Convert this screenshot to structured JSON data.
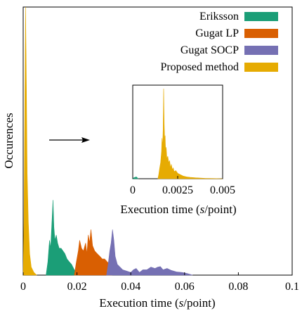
{
  "chart_data": [
    {
      "type": "area",
      "role": "main",
      "xlabel": "Execution time (s/point)",
      "ylabel": "Occurences",
      "xlim": [
        0,
        0.1
      ],
      "xticks": [
        "0",
        "0.02",
        "0.04",
        "0.06",
        "0.08",
        "0.1"
      ],
      "tick_values": [
        0,
        0.02,
        0.04,
        0.06,
        0.08,
        0.1
      ],
      "y_scale": "relative frequency (no ticks shown)",
      "ylim": [
        0,
        1
      ],
      "legend_placement": "top-right",
      "grid": false,
      "series": [
        {
          "name": "Eriksson",
          "color": "#1b9e77",
          "points": [
            [
              0.0085,
              0
            ],
            [
              0.0092,
              0.05
            ],
            [
              0.0098,
              0.13
            ],
            [
              0.0102,
              0.1
            ],
            [
              0.0107,
              0.2
            ],
            [
              0.0111,
              0.28
            ],
            [
              0.0114,
              0.18
            ],
            [
              0.0118,
              0.13
            ],
            [
              0.0123,
              0.15
            ],
            [
              0.0128,
              0.12
            ],
            [
              0.0134,
              0.1
            ],
            [
              0.0141,
              0.1
            ],
            [
              0.0148,
              0.09
            ],
            [
              0.0155,
              0.08
            ],
            [
              0.0163,
              0.06
            ],
            [
              0.0171,
              0.05
            ],
            [
              0.018,
              0.04
            ],
            [
              0.019,
              0.02
            ],
            [
              0.0205,
              0
            ]
          ]
        },
        {
          "name": "Gugat LP",
          "color": "#d95f02",
          "points": [
            [
              0.019,
              0
            ],
            [
              0.0198,
              0.05
            ],
            [
              0.0205,
              0.09
            ],
            [
              0.021,
              0.13
            ],
            [
              0.0217,
              0.1
            ],
            [
              0.0224,
              0.09
            ],
            [
              0.0232,
              0.12
            ],
            [
              0.0237,
              0.08
            ],
            [
              0.0242,
              0.15
            ],
            [
              0.0247,
              0.12
            ],
            [
              0.0252,
              0.17
            ],
            [
              0.0258,
              0.11
            ],
            [
              0.0266,
              0.09
            ],
            [
              0.0275,
              0.08
            ],
            [
              0.0285,
              0.07
            ],
            [
              0.0294,
              0.06
            ],
            [
              0.0303,
              0.06
            ],
            [
              0.0312,
              0.05
            ],
            [
              0.0322,
              0.04
            ],
            [
              0.033,
              0
            ]
          ]
        },
        {
          "name": "Gugat SOCP",
          "color": "#7570b3",
          "points": [
            [
              0.031,
              0
            ],
            [
              0.0316,
              0.04
            ],
            [
              0.0322,
              0.09
            ],
            [
              0.0327,
              0.12
            ],
            [
              0.0332,
              0.17
            ],
            [
              0.0337,
              0.13
            ],
            [
              0.0342,
              0.07
            ],
            [
              0.035,
              0.04
            ],
            [
              0.036,
              0.03
            ],
            [
              0.037,
              0.02
            ],
            [
              0.0385,
              0.015
            ],
            [
              0.04,
              0.01
            ],
            [
              0.041,
              0.02
            ],
            [
              0.042,
              0.025
            ],
            [
              0.0432,
              0.01
            ],
            [
              0.0445,
              0.02
            ],
            [
              0.046,
              0.02
            ],
            [
              0.0475,
              0.03
            ],
            [
              0.049,
              0.025
            ],
            [
              0.05,
              0.03
            ],
            [
              0.051,
              0.032
            ],
            [
              0.052,
              0.02
            ],
            [
              0.0535,
              0.025
            ],
            [
              0.055,
              0.018
            ],
            [
              0.057,
              0.012
            ],
            [
              0.059,
              0.01
            ],
            [
              0.061,
              0.006
            ],
            [
              0.063,
              0
            ]
          ]
        },
        {
          "name": "Proposed method",
          "color": "#e6ab02",
          "points": [
            [
              0,
              0
            ],
            [
              0.0003,
              0.2
            ],
            [
              0.0006,
              0.65
            ],
            [
              0.0009,
              1
            ],
            [
              0.0012,
              0.7
            ],
            [
              0.0015,
              0.38
            ],
            [
              0.0019,
              0.2
            ],
            [
              0.0024,
              0.08
            ],
            [
              0.003,
              0.03
            ],
            [
              0.004,
              0.01
            ],
            [
              0.005,
              0
            ]
          ]
        }
      ]
    },
    {
      "type": "area",
      "role": "inset",
      "xlabel": "Execution time (s/point)",
      "xlim": [
        0,
        0.005
      ],
      "xticks": [
        "0",
        "0.0025",
        "0.005"
      ],
      "tick_values": [
        0,
        0.0025,
        0.005
      ],
      "ylim": [
        0,
        1
      ],
      "series": [
        {
          "name": "Proposed method",
          "color": "#e6ab02",
          "points": [
            [
              0.0014,
              0
            ],
            [
              0.00145,
              0.05
            ],
            [
              0.0015,
              0.12
            ],
            [
              0.00155,
              0.18
            ],
            [
              0.0016,
              0.3
            ],
            [
              0.00163,
              0.45
            ],
            [
              0.00166,
              0.35
            ],
            [
              0.00169,
              0.55
            ],
            [
              0.00172,
              1
            ],
            [
              0.00175,
              0.6
            ],
            [
              0.00178,
              0.4
            ],
            [
              0.0018,
              0.48
            ],
            [
              0.00183,
              0.3
            ],
            [
              0.00186,
              0.35
            ],
            [
              0.0019,
              0.22
            ],
            [
              0.00195,
              0.25
            ],
            [
              0.002,
              0.18
            ],
            [
              0.00205,
              0.2
            ],
            [
              0.0021,
              0.12
            ],
            [
              0.00215,
              0.16
            ],
            [
              0.0022,
              0.1
            ],
            [
              0.00225,
              0.12
            ],
            [
              0.0023,
              0.08
            ],
            [
              0.0024,
              0.09
            ],
            [
              0.0025,
              0.06
            ],
            [
              0.0026,
              0.05
            ],
            [
              0.0027,
              0.04
            ],
            [
              0.0028,
              0.03
            ],
            [
              0.003,
              0.02
            ],
            [
              0.0032,
              0.015
            ],
            [
              0.0035,
              0.01
            ],
            [
              0.004,
              0.005
            ],
            [
              0.0045,
              0.002
            ],
            [
              0.005,
              0
            ]
          ]
        },
        {
          "name": "Eriksson",
          "color": "#1b9e77",
          "points": [
            [
              0,
              0
            ],
            [
              5e-05,
              0.01
            ],
            [
              0.0002,
              0.02
            ],
            [
              0.0003,
              0
            ]
          ]
        }
      ]
    }
  ],
  "legend": [
    {
      "label": "Eriksson",
      "color": "#1b9e77"
    },
    {
      "label": "Gugat LP",
      "color": "#d95f02"
    },
    {
      "label": "Gugat SOCP",
      "color": "#7570b3"
    },
    {
      "label": "Proposed method",
      "color": "#e6ab02"
    }
  ]
}
